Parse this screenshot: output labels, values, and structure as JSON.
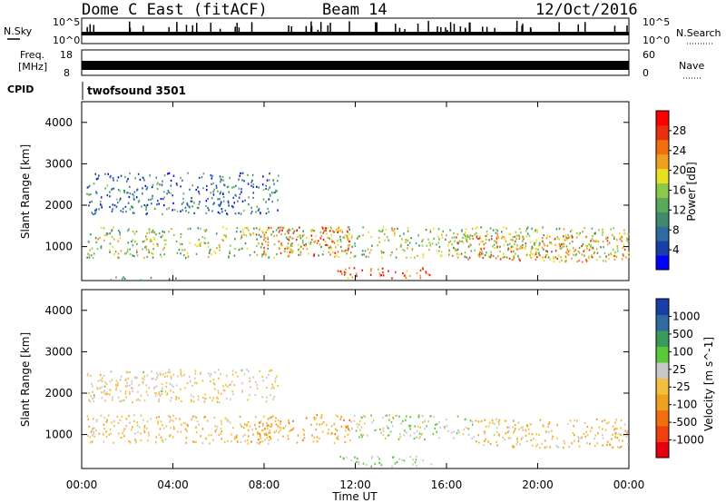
{
  "header": {
    "station": "Dome C East (fitACF)",
    "beam": "Beam 14",
    "date": "12/Oct/2016"
  },
  "top_panels": {
    "nsky_label": "N.Sky",
    "nsky_ticks": [
      "10^5",
      "10^0"
    ],
    "nsearch_label": "N.Search",
    "nsearch_ticks": [
      "10^5",
      "10^0"
    ],
    "freq_label": "Freq.",
    "freq_unit": "[MHz]",
    "freq_ticks": [
      "18",
      "8"
    ],
    "nave_label": "Nave",
    "nave_ticks": [
      "60",
      "0"
    ],
    "cpid_label": "CPID",
    "cpid_value": "twofsound 3501"
  },
  "chart_data": [
    {
      "type": "heatmap",
      "name": "power",
      "ylabel": "Slant Range [km]",
      "ylim": [
        180,
        4500
      ],
      "yticks": [
        "4000",
        "3000",
        "2000",
        "1000"
      ],
      "xlim": [
        0,
        24
      ],
      "colorbar": {
        "label": "Power [dB]",
        "ticks": [
          "28",
          "24",
          "20",
          "16",
          "12",
          "8",
          "4"
        ],
        "colors": [
          "#0000ff",
          "#1a3ea8",
          "#2f6aa0",
          "#3f8a6a",
          "#5aa85a",
          "#8cc84a",
          "#e8e020",
          "#f0a020",
          "#f07010",
          "#e83010",
          "#ff0000"
        ]
      },
      "scatter_regions": [
        {
          "t0": 0.2,
          "t1": 24,
          "r0": 750,
          "r1": 1500,
          "value": 16
        },
        {
          "t0": 7.6,
          "t1": 11.8,
          "r0": 800,
          "r1": 1500,
          "value": 24
        },
        {
          "t0": 16.2,
          "t1": 24,
          "r0": 650,
          "r1": 1300,
          "value": 22
        },
        {
          "t0": 11.2,
          "t1": 15.4,
          "r0": 250,
          "r1": 520,
          "value": 26
        },
        {
          "t0": 0.2,
          "t1": 8.6,
          "r0": 1800,
          "r1": 2800,
          "value": 8
        },
        {
          "t0": 1.2,
          "t1": 4.2,
          "r0": 200,
          "r1": 300,
          "value": 12
        }
      ]
    },
    {
      "type": "heatmap",
      "name": "velocity",
      "ylabel": "Slant Range [km]",
      "ylim": [
        180,
        4500
      ],
      "yticks": [
        "4000",
        "3000",
        "2000",
        "1000"
      ],
      "xlim": [
        0,
        24
      ],
      "xticks": [
        "00:00",
        "04:00",
        "08:00",
        "12:00",
        "16:00",
        "20:00",
        "00:00"
      ],
      "xlabel": "Time UT",
      "colorbar": {
        "label": "Velocity [m s^-1]",
        "ticks": [
          "1000",
          "500",
          "100",
          "25",
          "-25",
          "-100",
          "-500",
          "-1000"
        ],
        "colors": [
          "#e80010",
          "#f04010",
          "#f07010",
          "#f0a020",
          "#f2c040",
          "#c8c8c8",
          "#5ac83a",
          "#3a9a5a",
          "#2f6aa0",
          "#1a3ea8"
        ]
      },
      "scatter_regions": [
        {
          "t0": 0.2,
          "t1": 8.6,
          "r0": 800,
          "r1": 1500,
          "value": -150
        },
        {
          "t0": 7.6,
          "t1": 11.8,
          "r0": 800,
          "r1": 1500,
          "value": -300
        },
        {
          "t0": 11.8,
          "t1": 17.2,
          "r0": 900,
          "r1": 1500,
          "value": 150
        },
        {
          "t0": 17.2,
          "t1": 24,
          "r0": 700,
          "r1": 1400,
          "value": -150
        },
        {
          "t0": 0.2,
          "t1": 8.6,
          "r0": 1800,
          "r1": 2600,
          "value": 0
        },
        {
          "t0": 11.2,
          "t1": 15.4,
          "r0": 250,
          "r1": 500,
          "value": 200
        }
      ]
    }
  ]
}
